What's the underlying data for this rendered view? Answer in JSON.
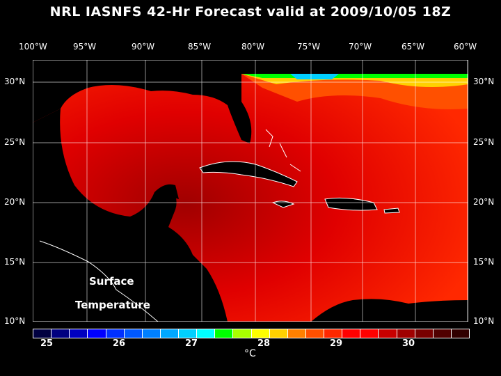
{
  "title": "NRL IASNFS  42-Hr Forecast valid at 2009/10/05 18Z",
  "lon_labels": [
    "100°W",
    "95°W",
    "90°W",
    "85°W",
    "80°W",
    "75°W",
    "70°W",
    "65°W",
    "60°W"
  ],
  "lat_labels": [
    "30°N",
    "25°N",
    "20°N",
    "15°N",
    "10°N"
  ],
  "map_labels": [
    "Surface",
    "Temperature"
  ],
  "colorbar": {
    "ticks": [
      "25",
      "26",
      "27",
      "28",
      "29",
      "30"
    ],
    "unit": "°C",
    "colors": [
      "#000040",
      "#000080",
      "#0000c0",
      "#0000ff",
      "#0030ff",
      "#0058ff",
      "#0080ff",
      "#00a8ff",
      "#00d0ff",
      "#00ffff",
      "#00ff00",
      "#a8ff00",
      "#ffff00",
      "#ffd000",
      "#ff8000",
      "#ff5000",
      "#ff2800",
      "#ff0000",
      "#ff0000",
      "#c80000",
      "#a00000",
      "#780000",
      "#500000",
      "#300000"
    ]
  }
}
